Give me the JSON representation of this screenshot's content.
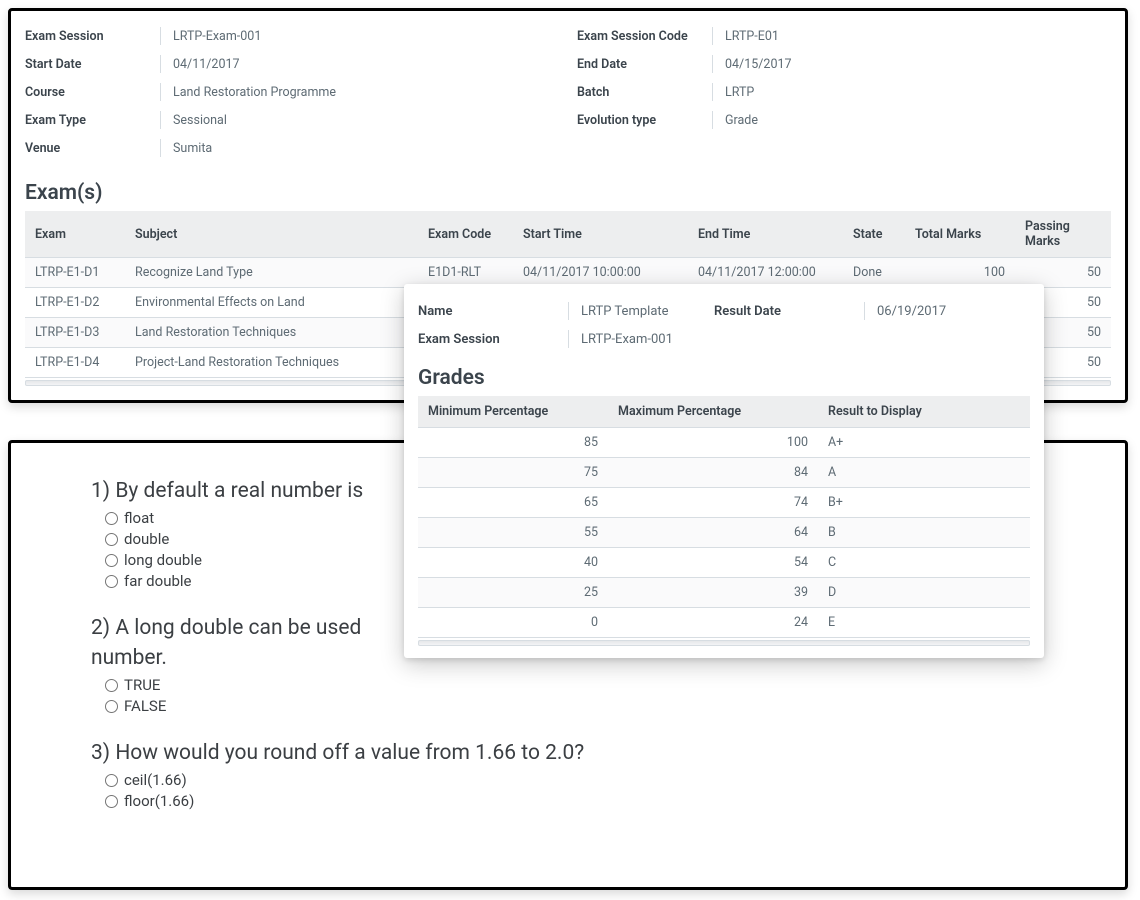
{
  "info": {
    "exam_session_label": "Exam Session",
    "exam_session_value": "LRTP-Exam-001",
    "exam_session_code_label": "Exam Session Code",
    "exam_session_code_value": "LRTP-E01",
    "start_date_label": "Start Date",
    "start_date_value": "04/11/2017",
    "end_date_label": "End Date",
    "end_date_value": "04/15/2017",
    "course_label": "Course",
    "course_value": "Land Restoration Programme",
    "batch_label": "Batch",
    "batch_value": "LRTP",
    "exam_type_label": "Exam Type",
    "exam_type_value": "Sessional",
    "evolution_type_label": "Evolution type",
    "evolution_type_value": "Grade",
    "venue_label": "Venue",
    "venue_value": "Sumita"
  },
  "exams": {
    "title": "Exam(s)",
    "headers": {
      "exam": "Exam",
      "subject": "Subject",
      "exam_code": "Exam Code",
      "start_time": "Start Time",
      "end_time": "End Time",
      "state": "State",
      "total_marks": "Total Marks",
      "passing_marks": "Passing Marks"
    },
    "rows": [
      {
        "exam": "LTRP-E1-D1",
        "subject": "Recognize Land Type",
        "exam_code": "E1D1-RLT",
        "start_time": "04/11/2017 10:00:00",
        "end_time": "04/11/2017 12:00:00",
        "state": "Done",
        "total_marks": "100",
        "passing_marks": "50"
      },
      {
        "exam": "LTRP-E1-D2",
        "subject": "Environmental Effects on Land",
        "exam_code": "",
        "start_time": "",
        "end_time": "",
        "state": "",
        "total_marks": "",
        "passing_marks": "50"
      },
      {
        "exam": "LTRP-E1-D3",
        "subject": "Land Restoration Techniques",
        "exam_code": "",
        "start_time": "",
        "end_time": "",
        "state": "",
        "total_marks": "",
        "passing_marks": "50"
      },
      {
        "exam": "LTRP-E1-D4",
        "subject": "Project-Land Restoration Techniques",
        "exam_code": "",
        "start_time": "",
        "end_time": "",
        "state": "",
        "total_marks": "",
        "passing_marks": "50"
      }
    ]
  },
  "overlay": {
    "name_label": "Name",
    "name_value": "LRTP Template",
    "result_date_label": "Result Date",
    "result_date_value": "06/19/2017",
    "exam_session_label": "Exam Session",
    "exam_session_value": "LRTP-Exam-001",
    "grades_title": "Grades",
    "headers": {
      "min": "Minimum Percentage",
      "max": "Maximum Percentage",
      "result": "Result to Display"
    },
    "rows": [
      {
        "min": "85",
        "max": "100",
        "result": "A+"
      },
      {
        "min": "75",
        "max": "84",
        "result": "A"
      },
      {
        "min": "65",
        "max": "74",
        "result": "B+"
      },
      {
        "min": "55",
        "max": "64",
        "result": "B"
      },
      {
        "min": "40",
        "max": "54",
        "result": "C"
      },
      {
        "min": "25",
        "max": "39",
        "result": "D"
      },
      {
        "min": "0",
        "max": "24",
        "result": "E"
      }
    ]
  },
  "questions": [
    {
      "title": "1) By default a real number is",
      "options": [
        "float",
        "double",
        "long double",
        "far double"
      ]
    },
    {
      "title": "2) A long double can be used",
      "title_end": "number.",
      "options": [
        "TRUE",
        "FALSE"
      ]
    },
    {
      "title": "3) How would you round off a value from 1.66 to 2.0?",
      "options": [
        "ceil(1.66)",
        "floor(1.66)"
      ]
    }
  ]
}
